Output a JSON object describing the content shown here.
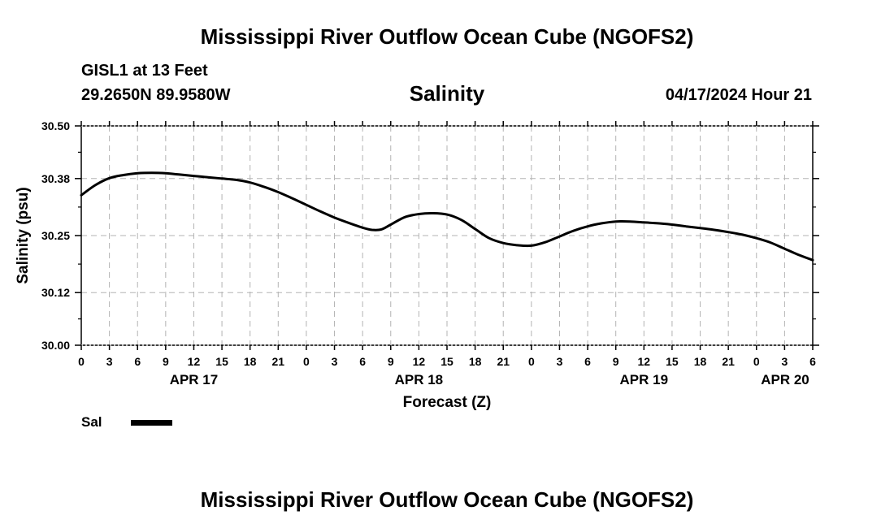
{
  "header": {
    "title_top": "Mississippi River Outflow Ocean Cube (NGOFS2)",
    "title_bottom": "Mississippi River Outflow Ocean Cube (NGOFS2)",
    "station": "GISL1 at 13 Feet",
    "coords": "29.2650N  89.9580W",
    "datetime": "04/17/2024 Hour 21"
  },
  "legend": {
    "label": "Sal",
    "color": "#000000"
  },
  "chart_data": {
    "type": "line",
    "title": "Salinity",
    "xlabel": "Forecast (Z)",
    "ylabel": "Salinity (psu)",
    "xlim": [
      0,
      78
    ],
    "ylim": [
      30.0,
      30.5
    ],
    "y_ticks": [
      "30.00",
      "30.12",
      "30.25",
      "30.38",
      "30.50"
    ],
    "x_tick_hours": [
      0,
      3,
      6,
      9,
      12,
      15,
      18,
      21,
      24,
      27,
      30,
      33,
      36,
      39,
      42,
      45,
      48,
      51,
      54,
      57,
      60,
      63,
      66,
      69,
      72,
      75,
      78
    ],
    "x_tick_labels": [
      "0",
      "3",
      "6",
      "9",
      "12",
      "15",
      "18",
      "21",
      "0",
      "3",
      "6",
      "9",
      "12",
      "15",
      "18",
      "21",
      "0",
      "3",
      "6",
      "9",
      "12",
      "15",
      "18",
      "21",
      "0",
      "3",
      "6"
    ],
    "date_labels": [
      {
        "label": "APR 17",
        "hour": 12
      },
      {
        "label": "APR 18",
        "hour": 36
      },
      {
        "label": "APR 19",
        "hour": 60
      },
      {
        "label": "APR 20",
        "hour": 78
      }
    ],
    "grid": true,
    "series": [
      {
        "name": "Sal",
        "color": "#000000",
        "x": [
          0,
          1.5,
          3,
          4.5,
          6,
          7.5,
          9,
          10.5,
          12,
          13.5,
          15,
          16.5,
          18,
          19.5,
          21,
          22.5,
          24,
          25.5,
          27,
          28.5,
          30,
          31,
          32,
          33,
          34.5,
          36,
          37.5,
          39,
          40.5,
          42,
          43.5,
          45,
          46.5,
          48,
          49.5,
          51,
          52.5,
          54,
          55.5,
          57,
          58.5,
          60,
          61.5,
          63,
          64.5,
          66,
          67.5,
          69,
          70.5,
          72,
          73.5,
          75,
          76.5,
          78
        ],
        "values": [
          30.342,
          30.365,
          30.381,
          30.388,
          30.392,
          30.393,
          30.392,
          30.389,
          30.386,
          30.383,
          30.38,
          30.377,
          30.371,
          30.361,
          30.349,
          30.335,
          30.32,
          30.305,
          30.291,
          30.279,
          30.268,
          30.263,
          30.264,
          30.275,
          30.292,
          30.299,
          30.301,
          30.298,
          30.286,
          30.265,
          30.244,
          30.233,
          30.228,
          30.227,
          30.235,
          30.248,
          30.261,
          30.271,
          30.278,
          30.282,
          30.282,
          30.28,
          30.278,
          30.275,
          30.271,
          30.267,
          30.263,
          30.258,
          30.252,
          30.244,
          30.234,
          30.22,
          30.206,
          30.194
        ]
      }
    ]
  }
}
